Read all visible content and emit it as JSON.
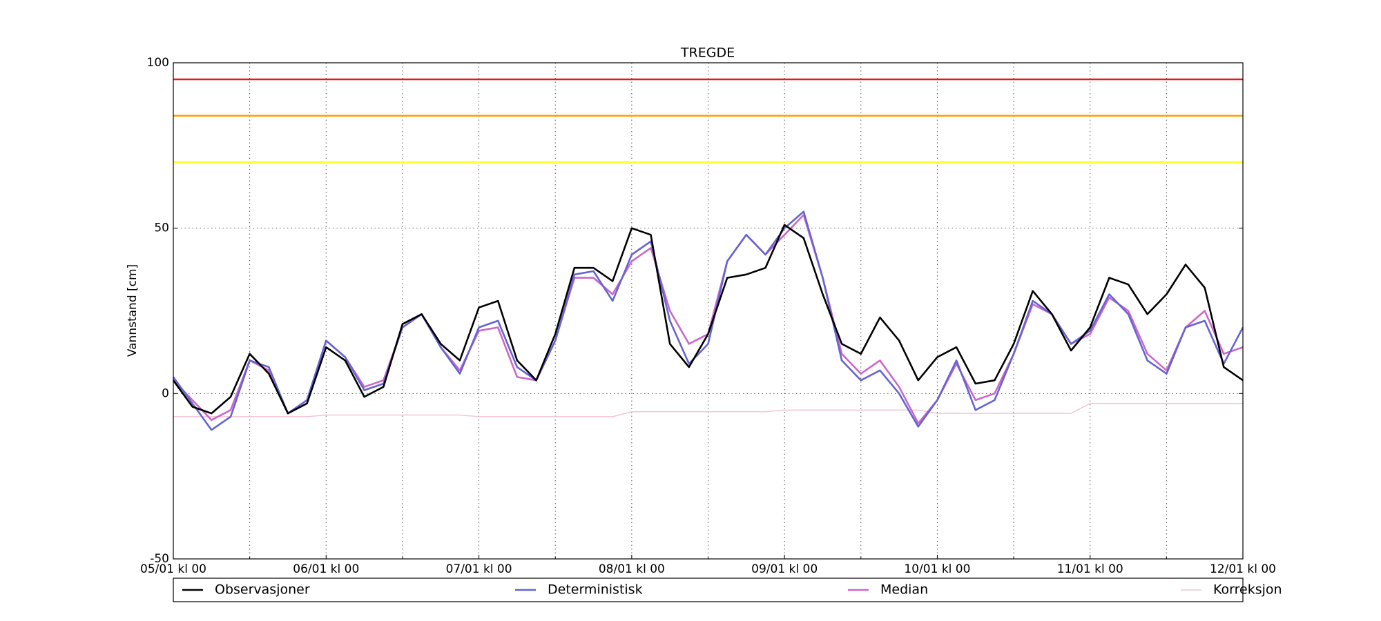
{
  "chart_data": {
    "type": "line",
    "title": "TREGDE",
    "ylabel": "Vannstand [cm]",
    "x": [
      0,
      3,
      6,
      9,
      12,
      15,
      18,
      21,
      24,
      27,
      30,
      33,
      36,
      39,
      42,
      45,
      48,
      51,
      54,
      57,
      60,
      63,
      66,
      69,
      72,
      75,
      78,
      81,
      84,
      87,
      90,
      93,
      96,
      99,
      102,
      105,
      108,
      111,
      114,
      117,
      120,
      123,
      126,
      129,
      132,
      135,
      138,
      141,
      144,
      147,
      150,
      153,
      156,
      159,
      162,
      165,
      168
    ],
    "xlim": [
      0,
      168
    ],
    "xticks": [
      {
        "value": 0,
        "label": "05/01 kl 00"
      },
      {
        "value": 24,
        "label": "06/01 kl 00"
      },
      {
        "value": 48,
        "label": "07/01 kl 00"
      },
      {
        "value": 72,
        "label": "08/01 kl 00"
      },
      {
        "value": 96,
        "label": "09/01 kl 00"
      },
      {
        "value": 120,
        "label": "10/01 kl 00"
      },
      {
        "value": 144,
        "label": "11/01 kl 00"
      },
      {
        "value": 168,
        "label": "12/01 kl 00"
      }
    ],
    "xticks_minor": [
      12,
      36,
      60,
      84,
      108,
      132,
      156
    ],
    "ylim": [
      -50,
      100
    ],
    "yticks": [
      -50,
      0,
      50,
      100
    ],
    "grid": true,
    "legend": "bottom",
    "thresholds": [
      {
        "value": 95,
        "color": "#e31a1c"
      },
      {
        "value": 84,
        "color": "#ff9f00"
      },
      {
        "value": 70,
        "color": "#ffff33"
      }
    ],
    "series": [
      {
        "name": "Observasjoner",
        "color": "#000000",
        "values": [
          4,
          -4,
          -6,
          -1,
          12,
          6,
          -6,
          -3,
          14,
          10,
          -1,
          2,
          21,
          24,
          15,
          10,
          26,
          28,
          10,
          4,
          18,
          38,
          38,
          34,
          50,
          48,
          15,
          8,
          18,
          35,
          36,
          38,
          51,
          47,
          30,
          15,
          12,
          23,
          16,
          4,
          11,
          14,
          3,
          4,
          15,
          31,
          24,
          13,
          20,
          35,
          33,
          24,
          30,
          39,
          32,
          8,
          4
        ]
      },
      {
        "name": "Deterministisk",
        "color": "#6464d2",
        "values": [
          5,
          -3,
          -11,
          -7,
          10,
          8,
          -6,
          -2,
          16,
          11,
          1,
          3,
          20,
          24,
          14,
          6,
          20,
          22,
          8,
          4,
          16,
          36,
          37,
          28,
          42,
          46,
          22,
          9,
          15,
          40,
          48,
          42,
          50,
          55,
          35,
          10,
          4,
          7,
          0,
          -10,
          -2,
          10,
          -5,
          -2,
          12,
          28,
          24,
          15,
          19,
          30,
          24,
          10,
          6,
          20,
          22,
          9,
          20
        ]
      },
      {
        "name": "Median",
        "color": "#cc66cc",
        "values": [
          4,
          -2,
          -8,
          -5,
          10,
          7,
          -6,
          -2,
          16,
          11,
          2,
          4,
          20,
          24,
          14,
          7,
          19,
          20,
          5,
          4,
          16,
          35,
          35,
          30,
          40,
          44,
          25,
          15,
          18,
          40,
          48,
          42,
          48,
          54,
          35,
          12,
          6,
          10,
          2,
          -9,
          -2,
          9,
          -2,
          0,
          12,
          27,
          24,
          15,
          18,
          29,
          25,
          12,
          7,
          20,
          25,
          12,
          14
        ]
      },
      {
        "name": "Korreksjon",
        "color": "#f2c4d4",
        "values": [
          -7,
          -7,
          -7,
          -7,
          -7,
          -7,
          -7,
          -7,
          -6.5,
          -6.5,
          -6.5,
          -6.5,
          -6.5,
          -6.5,
          -6.5,
          -6.5,
          -7,
          -7,
          -7,
          -7,
          -7,
          -7,
          -7,
          -7,
          -5.5,
          -5.5,
          -5.5,
          -5.5,
          -5.5,
          -5.5,
          -5.5,
          -5.5,
          -5,
          -5,
          -5,
          -5,
          -5,
          -5,
          -5,
          -5,
          -6,
          -6,
          -6,
          -6,
          -6,
          -6,
          -6,
          -6,
          -3,
          -3,
          -3,
          -3,
          -3,
          -3,
          -3,
          -3,
          -3
        ]
      }
    ]
  }
}
